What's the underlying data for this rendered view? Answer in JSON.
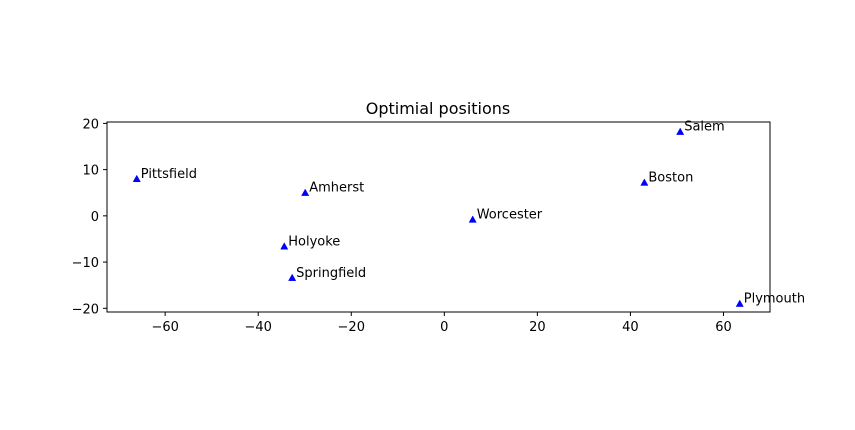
{
  "chart_data": {
    "type": "scatter",
    "title": "Optimial positions",
    "xlabel": "",
    "ylabel": "",
    "xlim": [
      -72.5,
      70
    ],
    "ylim": [
      -20.8,
      20.3
    ],
    "x_ticks": [
      -60,
      -40,
      -20,
      0,
      20,
      40,
      60
    ],
    "y_ticks": [
      -20,
      -10,
      0,
      10,
      20
    ],
    "x_tick_labels": [
      "−60",
      "−40",
      "−20",
      "0",
      "20",
      "40",
      "60"
    ],
    "y_tick_labels": [
      "−20",
      "−10",
      "0",
      "10",
      "20"
    ],
    "grid": false,
    "marker": "triangle",
    "marker_color": "#0000ff",
    "points": [
      {
        "label": "Pittsfield",
        "x": -66.1,
        "y": 8.0
      },
      {
        "label": "Amherst",
        "x": -29.9,
        "y": 5.0
      },
      {
        "label": "Holyoke",
        "x": -34.4,
        "y": -6.6
      },
      {
        "label": "Springfield",
        "x": -32.7,
        "y": -13.4
      },
      {
        "label": "Worcester",
        "x": 6.1,
        "y": -0.8
      },
      {
        "label": "Boston",
        "x": 43.0,
        "y": 7.2
      },
      {
        "label": "Salem",
        "x": 50.7,
        "y": 18.2
      },
      {
        "label": "Plymouth",
        "x": 63.5,
        "y": -19.0
      }
    ]
  }
}
